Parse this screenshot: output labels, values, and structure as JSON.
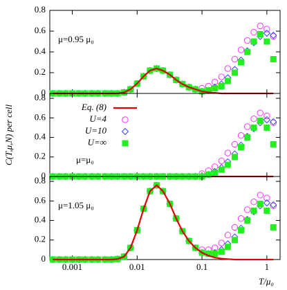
{
  "chart_data": [
    {
      "type": "line",
      "annotation": "μ=0.95 μ₀",
      "xscale": "log",
      "xlim": [
        0.00045,
        1.6
      ],
      "ylim": [
        0,
        0.8
      ],
      "yticks": [
        0,
        0.2,
        0.4,
        0.6,
        0.8
      ],
      "x": [
        0.0005,
        0.00063,
        0.00079,
        0.001,
        0.00126,
        0.00158,
        0.002,
        0.0025,
        0.0032,
        0.004,
        0.005,
        0.0063,
        0.0079,
        0.01,
        0.0126,
        0.0158,
        0.02,
        0.025,
        0.032,
        0.04,
        0.05,
        0.063,
        0.079,
        0.1,
        0.126,
        0.158,
        0.2,
        0.25,
        0.32,
        0.4,
        0.5,
        0.63,
        0.79,
        1,
        1.26
      ],
      "series": [
        {
          "marker": "circle",
          "color": "#ff33ff",
          "values": [
            0,
            0,
            0,
            0,
            0,
            0,
            0,
            0,
            0,
            0,
            0,
            0.01,
            0.04,
            0.095,
            0.165,
            0.22,
            0.24,
            0.22,
            0.18,
            0.13,
            0.09,
            0.06,
            0.04,
            0.05,
            0.07,
            0.11,
            0.16,
            0.24,
            0.33,
            0.42,
            0.51,
            0.59,
            0.65,
            0.62,
            0.55
          ]
        },
        {
          "marker": "diamond",
          "color": "#3344ff",
          "values": [
            0,
            0,
            0,
            0,
            0,
            0,
            0,
            0,
            0,
            0,
            0,
            0.01,
            0.04,
            0.095,
            0.165,
            0.22,
            0.24,
            0.22,
            0.18,
            0.13,
            0.09,
            0.06,
            0.04,
            0.02,
            0.03,
            0.06,
            0.09,
            0.15,
            0.23,
            0.32,
            0.41,
            0.49,
            0.55,
            0.58,
            0.56
          ]
        },
        {
          "marker": "square",
          "color": "#22ee22",
          "values": [
            0,
            0,
            0,
            0,
            0,
            0,
            0,
            0,
            0,
            0,
            0,
            0.01,
            0.04,
            0.095,
            0.165,
            0.22,
            0.24,
            0.22,
            0.18,
            0.13,
            0.09,
            0.06,
            0.04,
            0.02,
            0.03,
            0.05,
            0.07,
            0.12,
            0.2,
            0.3,
            0.4,
            0.5,
            0.57,
            0.5,
            0.33
          ]
        },
        {
          "marker": "none",
          "color": "#dd0000",
          "values": [
            0,
            0,
            0,
            0,
            0,
            0,
            0,
            0,
            0,
            0,
            0,
            0.01,
            0.04,
            0.095,
            0.165,
            0.22,
            0.24,
            0.22,
            0.18,
            0.13,
            0.09,
            0.06,
            0.04,
            0.02,
            0.01,
            0.006,
            0,
            0,
            0,
            0,
            0,
            0,
            0,
            0,
            0
          ]
        }
      ]
    },
    {
      "type": "line",
      "annotation": "μ=μ₀",
      "ylabel": "C(T,μ,N) per cell",
      "legend": "upper left",
      "xscale": "log",
      "xlim": [
        0.00045,
        1.6
      ],
      "ylim": [
        0,
        0.85
      ],
      "yticks": [
        0,
        0.2,
        0.4,
        0.6,
        0.8
      ],
      "x": [
        0.0005,
        0.00063,
        0.00079,
        0.001,
        0.00126,
        0.00158,
        0.002,
        0.0025,
        0.0032,
        0.004,
        0.005,
        0.0063,
        0.0079,
        0.01,
        0.0126,
        0.0158,
        0.02,
        0.025,
        0.032,
        0.04,
        0.05,
        0.063,
        0.079,
        0.1,
        0.126,
        0.158,
        0.2,
        0.25,
        0.32,
        0.4,
        0.5,
        0.63,
        0.79,
        1,
        1.26
      ],
      "series": [
        {
          "name": "Eq. (8)",
          "marker": "none",
          "color": "#dd0000",
          "values": [
            0,
            0,
            0,
            0,
            0,
            0,
            0,
            0,
            0,
            0,
            0,
            0,
            0,
            0,
            0,
            0,
            0,
            0,
            0,
            0,
            0,
            0,
            0,
            0,
            0,
            0,
            0,
            0,
            0,
            0,
            0,
            0,
            0,
            0,
            0
          ]
        },
        {
          "name": "U=4",
          "marker": "circle",
          "color": "#ff33ff",
          "values": [
            0,
            0,
            0,
            0,
            0,
            0,
            0,
            0,
            0,
            0,
            0,
            0,
            0,
            0,
            0,
            0,
            0,
            0,
            0,
            0,
            0,
            0,
            0,
            0.03,
            0.06,
            0.1,
            0.16,
            0.24,
            0.33,
            0.42,
            0.51,
            0.59,
            0.65,
            0.62,
            0.55
          ]
        },
        {
          "name": "U=10",
          "marker": "diamond",
          "color": "#3344ff",
          "values": [
            0,
            0,
            0,
            0,
            0,
            0,
            0,
            0,
            0,
            0,
            0,
            0,
            0,
            0,
            0,
            0,
            0,
            0,
            0,
            0,
            0,
            0,
            0,
            0,
            0.02,
            0.05,
            0.09,
            0.15,
            0.23,
            0.32,
            0.41,
            0.49,
            0.55,
            0.58,
            0.56
          ]
        },
        {
          "name": "U=∞",
          "marker": "square",
          "color": "#22ee22",
          "values": [
            0,
            0,
            0,
            0,
            0,
            0,
            0,
            0,
            0,
            0,
            0,
            0,
            0,
            0,
            0,
            0,
            0,
            0,
            0,
            0,
            0,
            0,
            0,
            0,
            0.02,
            0.04,
            0.07,
            0.12,
            0.2,
            0.3,
            0.4,
            0.5,
            0.57,
            0.5,
            0.33
          ]
        }
      ]
    },
    {
      "type": "line",
      "annotation": "μ=1.05 μ₀",
      "xlabel": "T/μ₀",
      "xscale": "log",
      "xlim": [
        0.00045,
        1.6
      ],
      "ylim": [
        0,
        0.85
      ],
      "yticks": [
        0,
        0.2,
        0.4,
        0.6,
        0.8
      ],
      "xticks": [
        0.001,
        0.01,
        0.1,
        1
      ],
      "x": [
        0.0005,
        0.00063,
        0.00079,
        0.001,
        0.00126,
        0.00158,
        0.002,
        0.0025,
        0.0032,
        0.004,
        0.005,
        0.0063,
        0.0079,
        0.01,
        0.0126,
        0.0158,
        0.02,
        0.025,
        0.032,
        0.04,
        0.05,
        0.063,
        0.079,
        0.1,
        0.126,
        0.158,
        0.2,
        0.25,
        0.32,
        0.4,
        0.5,
        0.63,
        0.79,
        1,
        1.26
      ],
      "series": [
        {
          "marker": "circle",
          "color": "#ff33ff",
          "values": [
            0,
            0,
            0,
            0,
            0,
            0,
            0,
            0,
            0,
            0,
            0.005,
            0.03,
            0.12,
            0.3,
            0.52,
            0.7,
            0.76,
            0.7,
            0.57,
            0.42,
            0.29,
            0.19,
            0.12,
            0.1,
            0.1,
            0.12,
            0.17,
            0.25,
            0.33,
            0.42,
            0.51,
            0.59,
            0.66,
            0.63,
            0.55
          ]
        },
        {
          "marker": "diamond",
          "color": "#3344ff",
          "values": [
            0,
            0,
            0,
            0,
            0,
            0,
            0,
            0,
            0,
            0,
            0.005,
            0.03,
            0.12,
            0.3,
            0.52,
            0.7,
            0.76,
            0.7,
            0.57,
            0.42,
            0.29,
            0.19,
            0.12,
            0.07,
            0.06,
            0.07,
            0.1,
            0.16,
            0.23,
            0.32,
            0.41,
            0.49,
            0.55,
            0.58,
            0.56
          ]
        },
        {
          "marker": "square",
          "color": "#22ee22",
          "values": [
            0,
            0,
            0,
            0,
            0,
            0,
            0,
            0,
            0,
            0,
            0.005,
            0.03,
            0.12,
            0.3,
            0.52,
            0.7,
            0.76,
            0.7,
            0.57,
            0.42,
            0.29,
            0.19,
            0.12,
            0.07,
            0.06,
            0.06,
            0.08,
            0.13,
            0.2,
            0.3,
            0.4,
            0.5,
            0.57,
            0.5,
            0.33
          ]
        },
        {
          "marker": "none",
          "color": "#dd0000",
          "values": [
            0,
            0,
            0,
            0,
            0,
            0,
            0,
            0,
            0,
            0,
            0.005,
            0.03,
            0.12,
            0.3,
            0.52,
            0.7,
            0.76,
            0.7,
            0.57,
            0.42,
            0.29,
            0.19,
            0.12,
            0.07,
            0.04,
            0.02,
            0.01,
            0.005,
            0,
            0,
            0,
            0,
            0,
            0,
            0
          ]
        }
      ]
    }
  ]
}
